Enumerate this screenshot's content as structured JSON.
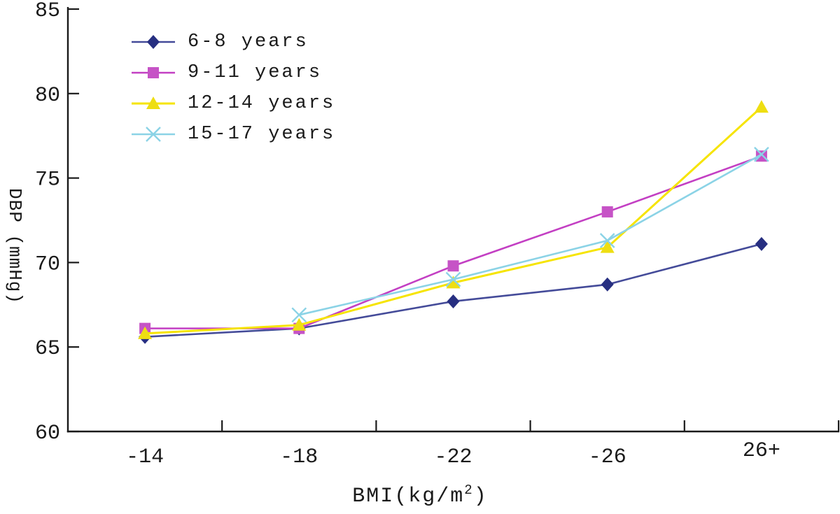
{
  "chart_data": {
    "type": "line",
    "title": "",
    "xlabel": "BMI(kg/m2)",
    "xlabel_base": "BMI(kg/m",
    "xlabel_sup": "2",
    "xlabel_close": ")",
    "ylabel": "DBP (mmHg)",
    "ylim": [
      60,
      85
    ],
    "y_ticks": [
      "85",
      "80",
      "75",
      "70",
      "65",
      "60"
    ],
    "y_tick_values": [
      85,
      80,
      75,
      70,
      65,
      60
    ],
    "categories": [
      "-14",
      "-18",
      "-22",
      "-26",
      "26+"
    ],
    "grid": false,
    "legend_position": "top-left",
    "axis_color": "#1a1a1a",
    "background_color": "#ffffff",
    "series": [
      {
        "name": "6-8 years",
        "marker": "diamond",
        "color_line": "#444b99",
        "color_marker": "#272f81",
        "values": [
          65.6,
          66.1,
          67.7,
          68.7,
          71.1
        ]
      },
      {
        "name": "9-11 years",
        "marker": "square",
        "color_line": "#c33fc3",
        "color_marker": "#c653c6",
        "values": [
          66.1,
          66.1,
          69.8,
          73.0,
          76.3
        ]
      },
      {
        "name": "12-14 years",
        "marker": "triangle",
        "color_line": "#f6e400",
        "color_marker": "#eede12",
        "values": [
          65.8,
          66.3,
          68.8,
          70.9,
          79.2
        ]
      },
      {
        "name": "15-17 years",
        "marker": "x",
        "color_line": "#8bd3e6",
        "color_marker": "#8bd3e6",
        "values": [
          null,
          66.9,
          69.0,
          71.3,
          76.4
        ]
      }
    ]
  }
}
